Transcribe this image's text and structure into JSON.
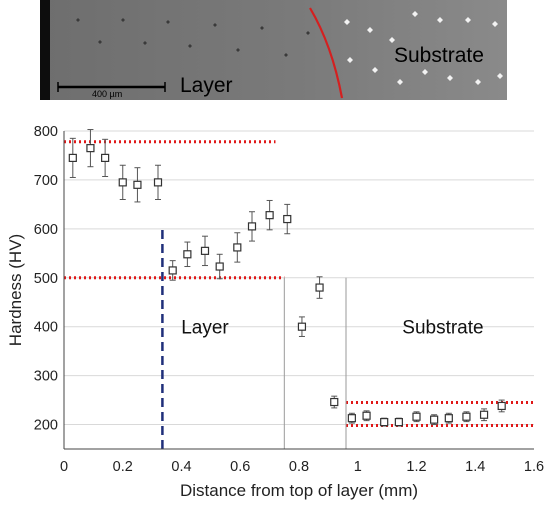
{
  "micrograph": {
    "layer_label": "Layer",
    "substrate_label": "Substrate",
    "scale_label": "400 µm"
  },
  "chart_data": {
    "type": "scatter",
    "xlabel": "Distance from top of layer (mm)",
    "ylabel": "Hardness (HV)",
    "xlim": [
      0,
      1.6
    ],
    "ylim": [
      150,
      800
    ],
    "xticks": [
      0,
      0.2,
      0.4,
      0.6,
      0.8,
      1,
      1.2,
      1.4,
      1.6
    ],
    "xtick_labels": [
      "0",
      "0.2",
      "0.4",
      "0.6",
      "0.8",
      "1",
      "1.2",
      "1.4",
      "1.6"
    ],
    "yticks": [
      200,
      300,
      400,
      500,
      600,
      700,
      800
    ],
    "ytick_labels": [
      "200",
      "300",
      "400",
      "500",
      "600",
      "700",
      "800"
    ],
    "grid": "horizontal",
    "marker": "open-square",
    "points": [
      {
        "x": 0.03,
        "y": 745,
        "err": 40
      },
      {
        "x": 0.09,
        "y": 765,
        "err": 38
      },
      {
        "x": 0.14,
        "y": 745,
        "err": 38
      },
      {
        "x": 0.2,
        "y": 695,
        "err": 35
      },
      {
        "x": 0.25,
        "y": 690,
        "err": 35
      },
      {
        "x": 0.32,
        "y": 695,
        "err": 35
      },
      {
        "x": 0.37,
        "y": 515,
        "err": 20
      },
      {
        "x": 0.42,
        "y": 548,
        "err": 25
      },
      {
        "x": 0.48,
        "y": 555,
        "err": 30
      },
      {
        "x": 0.53,
        "y": 523,
        "err": 25
      },
      {
        "x": 0.59,
        "y": 562,
        "err": 30
      },
      {
        "x": 0.64,
        "y": 605,
        "err": 30
      },
      {
        "x": 0.7,
        "y": 628,
        "err": 30
      },
      {
        "x": 0.76,
        "y": 620,
        "err": 30
      },
      {
        "x": 0.81,
        "y": 400,
        "err": 20
      },
      {
        "x": 0.87,
        "y": 480,
        "err": 22
      },
      {
        "x": 0.92,
        "y": 246,
        "err": 12
      },
      {
        "x": 0.98,
        "y": 213,
        "err": 10
      },
      {
        "x": 1.03,
        "y": 218,
        "err": 10
      },
      {
        "x": 1.09,
        "y": 205,
        "err": 8
      },
      {
        "x": 1.14,
        "y": 205,
        "err": 8
      },
      {
        "x": 1.2,
        "y": 216,
        "err": 10
      },
      {
        "x": 1.26,
        "y": 210,
        "err": 10
      },
      {
        "x": 1.31,
        "y": 213,
        "err": 10
      },
      {
        "x": 1.37,
        "y": 216,
        "err": 10
      },
      {
        "x": 1.43,
        "y": 220,
        "err": 12
      },
      {
        "x": 1.49,
        "y": 238,
        "err": 12
      }
    ],
    "reference_lines": [
      {
        "style": "red-dotted",
        "orientation": "horizontal",
        "y": 778,
        "x_from": 0,
        "x_to": 0.72
      },
      {
        "style": "red-dotted",
        "orientation": "horizontal",
        "y": 500,
        "x_from": 0,
        "x_to": 0.75
      },
      {
        "style": "red-dotted",
        "orientation": "horizontal",
        "y": 245,
        "x_from": 0.96,
        "x_to": 1.6
      },
      {
        "style": "red-dotted",
        "orientation": "horizontal",
        "y": 198,
        "x_from": 0.96,
        "x_to": 1.6
      },
      {
        "style": "blue-dashed",
        "orientation": "vertical",
        "x": 0.335,
        "y_from": 150,
        "y_to": 605
      },
      {
        "style": "gray-thin",
        "orientation": "vertical",
        "x": 0.75,
        "y_from": 150,
        "y_to": 500
      },
      {
        "style": "gray-thin",
        "orientation": "vertical",
        "x": 0.96,
        "y_from": 150,
        "y_to": 500
      }
    ],
    "annotations": [
      {
        "text": "Layer",
        "x": 0.48,
        "y": 400
      },
      {
        "text": "Substrate",
        "x": 1.29,
        "y": 400
      }
    ]
  }
}
